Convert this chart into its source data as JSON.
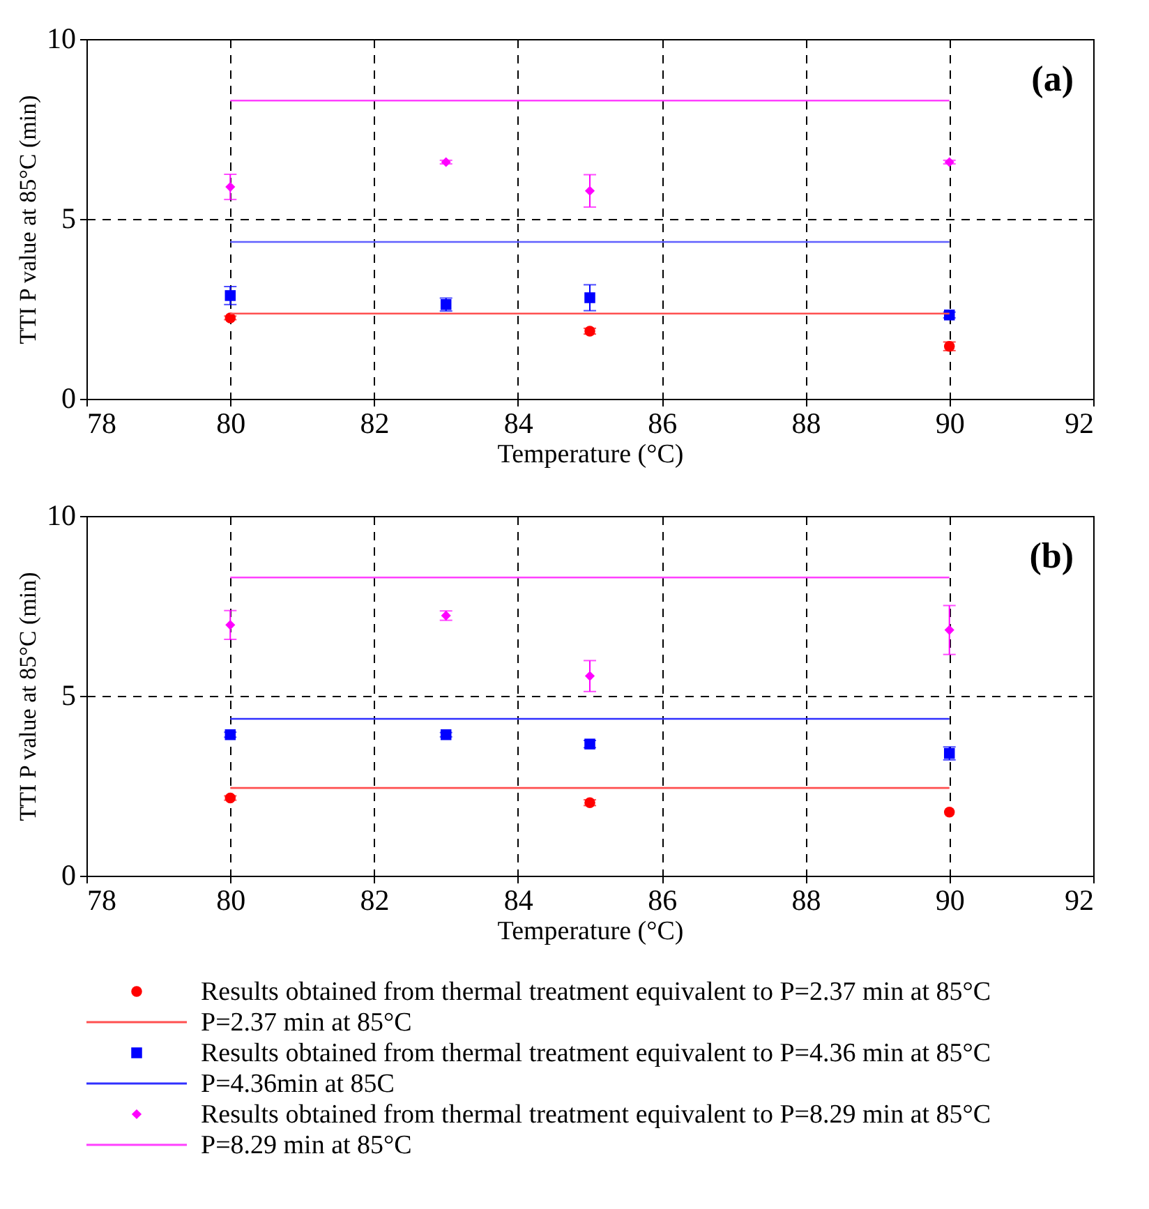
{
  "chart_data": [
    {
      "type": "scatter",
      "xlabel": "Temperature (°C)",
      "ylabel": "TTI P value at 85°C (min)",
      "annotations": [
        "(a)"
      ],
      "xlim": [
        78,
        92
      ],
      "xticks": [
        78,
        80,
        82,
        84,
        86,
        88,
        90,
        92
      ],
      "ylim": [
        0,
        10
      ],
      "yticks": [
        0,
        5,
        10
      ],
      "grid": true,
      "legend": false,
      "series": [
        {
          "type": "scatter",
          "marker": "circle",
          "color": "#ff0000",
          "x": [
            80,
            85,
            90
          ],
          "values": [
            2.25,
            1.88,
            1.46
          ],
          "errors": [
            0.05,
            0.08,
            0.12
          ]
        },
        {
          "type": "line",
          "marker": "none",
          "color": "#ff5050",
          "x": [
            80,
            90
          ],
          "values": [
            2.37,
            2.37
          ]
        },
        {
          "type": "scatter",
          "marker": "square",
          "color": "#0000ff",
          "x": [
            80,
            83,
            85,
            90
          ],
          "values": [
            2.87,
            2.62,
            2.81,
            2.33
          ],
          "errors": [
            0.25,
            0.18,
            0.36,
            0.08
          ]
        },
        {
          "type": "line",
          "marker": "none",
          "color": "#6060ff",
          "x": [
            80,
            90
          ],
          "values": [
            4.36,
            4.36
          ]
        },
        {
          "type": "scatter",
          "marker": "diamond",
          "color": "#ff00ff",
          "x": [
            80,
            83,
            85,
            90
          ],
          "values": [
            5.89,
            6.58,
            5.78,
            6.58
          ],
          "errors": [
            0.35,
            0.05,
            0.45,
            0.05
          ]
        },
        {
          "type": "line",
          "marker": "none",
          "color": "#ff40ff",
          "x": [
            80,
            90
          ],
          "values": [
            8.29,
            8.29
          ]
        }
      ]
    },
    {
      "type": "scatter",
      "xlabel": "Temperature (°C)",
      "ylabel": "TTI P value at 85°C (min)",
      "annotations": [
        "(b)"
      ],
      "xlim": [
        78,
        92
      ],
      "xticks": [
        78,
        80,
        82,
        84,
        86,
        88,
        90,
        92
      ],
      "ylim": [
        0,
        10
      ],
      "yticks": [
        0,
        5,
        10
      ],
      "grid": true,
      "legend": "bottom",
      "series": [
        {
          "type": "scatter",
          "marker": "circle",
          "name": "Results obtained from thermal treatment equivalent to P=2.37 min at 85°C",
          "color": "#ff0000",
          "x": [
            80,
            85,
            90
          ],
          "values": [
            2.16,
            2.03,
            1.77
          ],
          "errors": [
            0.06,
            0.08,
            null
          ]
        },
        {
          "type": "line",
          "marker": "none",
          "name": "P=2.37 min at 85°C",
          "color": "#ff5050",
          "x": [
            80,
            90
          ],
          "values": [
            2.44,
            2.44
          ]
        },
        {
          "type": "scatter",
          "marker": "square",
          "name": "Results obtained from thermal treatment equivalent to P=4.36 min at 85°C",
          "color": "#0000ff",
          "x": [
            80,
            83,
            85,
            90
          ],
          "values": [
            3.92,
            3.92,
            3.66,
            3.4
          ],
          "errors": [
            0.07,
            0.06,
            0.1,
            0.18
          ]
        },
        {
          "type": "line",
          "marker": "none",
          "name": "P=4.36min at 85C",
          "color": "#3030ff",
          "x": [
            80,
            90
          ],
          "values": [
            4.36,
            4.36
          ]
        },
        {
          "type": "scatter",
          "marker": "diamond",
          "name": "Results obtained from thermal treatment equivalent to P=8.29 min at 85°C",
          "color": "#ff00ff",
          "x": [
            80,
            83,
            85,
            90
          ],
          "values": [
            6.97,
            7.23,
            5.55,
            6.83
          ],
          "errors": [
            0.4,
            0.13,
            0.43,
            0.68
          ]
        },
        {
          "type": "line",
          "marker": "none",
          "name": "P=8.29 min at 85°C",
          "color": "#ff40ff",
          "x": [
            80,
            90
          ],
          "values": [
            8.29,
            8.29
          ]
        }
      ]
    }
  ]
}
